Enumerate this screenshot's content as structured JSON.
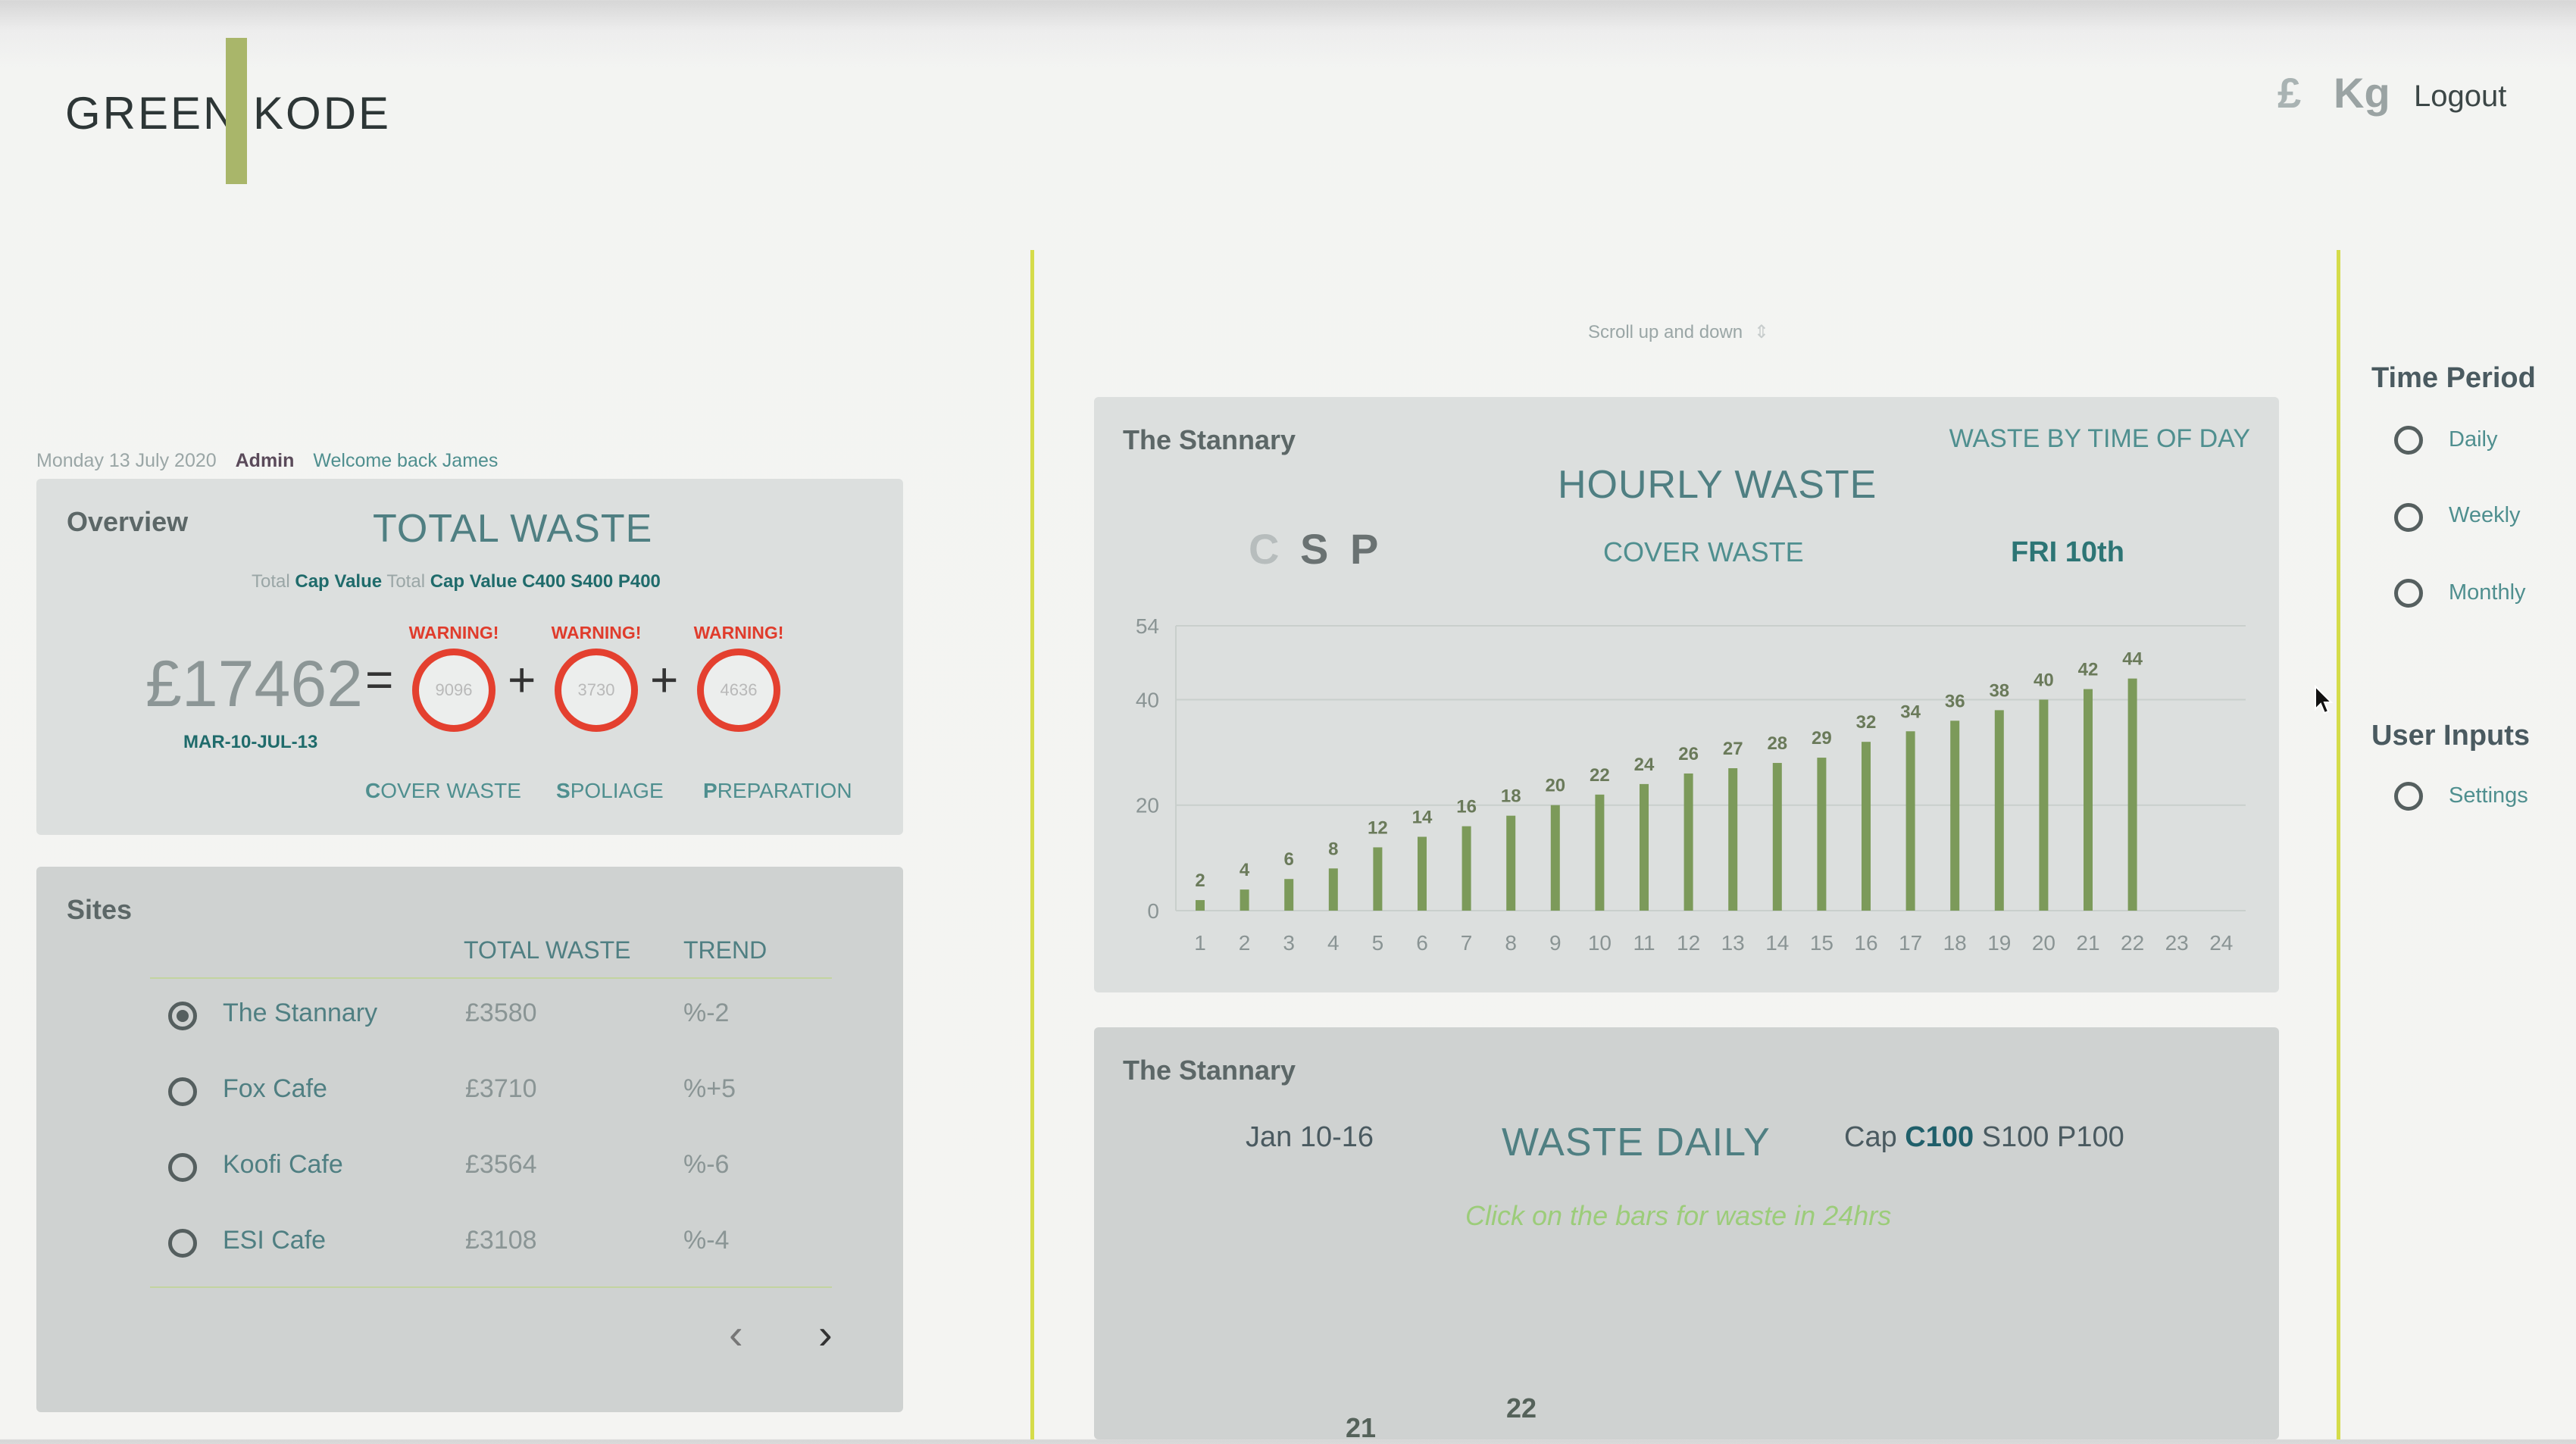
{
  "header": {
    "logo_left": "GREEN",
    "logo_right": "KODE",
    "currency_toggle": "£",
    "weight_toggle": "Kg",
    "logout": "Logout"
  },
  "status": {
    "date": "Monday 13 July 2020",
    "role": "Admin",
    "welcome": "Welcome back James"
  },
  "scroll_hint": "Scroll up and down",
  "overview": {
    "title": "Overview",
    "heading": "TOTAL WASTE",
    "cap_prefix1": "Total",
    "cap_label1": "Cap Value",
    "cap_prefix2": "Total",
    "cap_label2": "Cap Value C400 S400 P400",
    "total": "£17462",
    "equals": "=",
    "plus": "+",
    "period": "MAR-10-JUL-13",
    "items": [
      {
        "warning": "WARNING!",
        "value": "9096",
        "initial": "C",
        "rest": "OVER WASTE"
      },
      {
        "warning": "WARNING!",
        "value": "3730",
        "initial": "S",
        "rest": "POLIAGE"
      },
      {
        "warning": "WARNING!",
        "value": "4636",
        "initial": "P",
        "rest": "REPARATION"
      }
    ]
  },
  "sites": {
    "title": "Sites",
    "col_total": "TOTAL WASTE",
    "col_trend": "TREND",
    "rows": [
      {
        "name": "The Stannary",
        "total": "£3580",
        "trend": "%-2",
        "selected": true
      },
      {
        "name": "Fox Cafe",
        "total": "£3710",
        "trend": "%+5",
        "selected": false
      },
      {
        "name": "Koofi Cafe",
        "total": "£3564",
        "trend": "%-6",
        "selected": false
      },
      {
        "name": "ESI Cafe",
        "total": "£3108",
        "trend": "%-4",
        "selected": false
      }
    ],
    "prev": "‹",
    "next": "›"
  },
  "hourly": {
    "site": "The Stannary",
    "subtitle": "WASTE BY TIME OF DAY",
    "heading": "HOURLY WASTE",
    "filter_c": "C",
    "filter_s": "S",
    "filter_p": "P",
    "mode": "COVER WASTE",
    "day": "FRI 10th"
  },
  "daily": {
    "site": "The Stannary",
    "range": "Jan 10-16",
    "heading": "WASTE DAILY",
    "cap_prefix": "Cap",
    "cap_c": "C100",
    "cap_rest": "S100 P100",
    "hint": "Click on the bars for waste in 24hrs",
    "label_a": "21",
    "label_b": "22"
  },
  "sidebar": {
    "time_title": "Time Period",
    "time_options": [
      "Daily",
      "Weekly",
      "Monthly"
    ],
    "inputs_title": "User Inputs",
    "inputs_options": [
      "Settings"
    ]
  },
  "colors": {
    "accent_green": "#a9b66a",
    "bar_green": "#7c9a5a",
    "warning_red": "#e4402f",
    "divider_yellow": "#d5dc4a"
  },
  "chart_data": {
    "type": "bar",
    "categories": [
      "1",
      "2",
      "3",
      "4",
      "5",
      "6",
      "7",
      "8",
      "9",
      "10",
      "11",
      "12",
      "13",
      "14",
      "15",
      "16",
      "17",
      "18",
      "19",
      "20",
      "21",
      "22",
      "23",
      "24"
    ],
    "values": [
      2,
      4,
      6,
      8,
      12,
      14,
      16,
      18,
      20,
      22,
      24,
      26,
      27,
      28,
      29,
      32,
      34,
      36,
      38,
      40,
      42,
      44,
      null,
      null
    ],
    "y_ticks": [
      "0",
      "20",
      "40",
      "54"
    ],
    "ylim": [
      0,
      54
    ],
    "grid": true
  }
}
